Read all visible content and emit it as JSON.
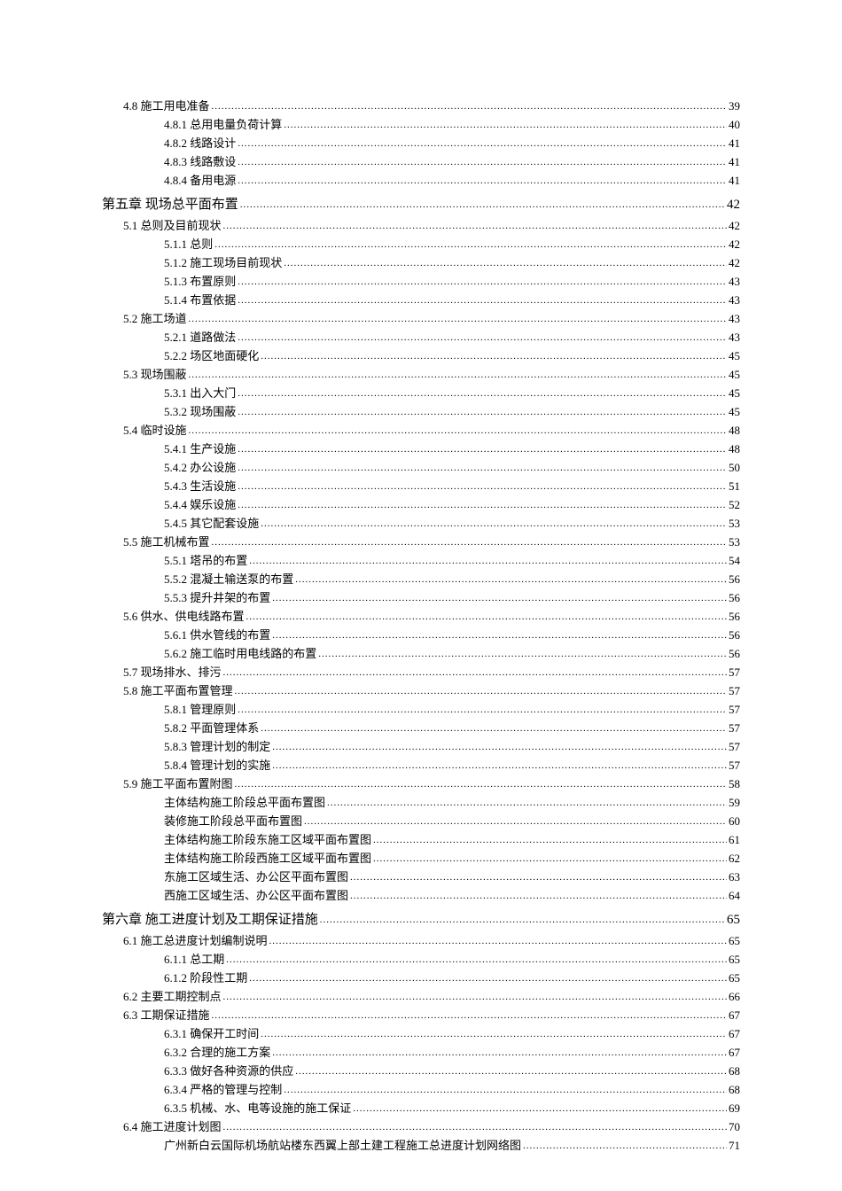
{
  "toc": [
    {
      "level": 1,
      "label": "4.8 施工用电准备",
      "page": "39"
    },
    {
      "level": 2,
      "label": "4.8.1 总用电量负荷计算",
      "page": "40"
    },
    {
      "level": 2,
      "label": "4.8.2 线路设计",
      "page": "41"
    },
    {
      "level": 2,
      "label": "4.8.3 线路敷设",
      "page": "41"
    },
    {
      "level": 2,
      "label": "4.8.4 备用电源",
      "page": "41"
    },
    {
      "level": 0,
      "label": "第五章   现场总平面布置",
      "page": "42"
    },
    {
      "level": 1,
      "label": "5.1 总则及目前现状",
      "page": "42"
    },
    {
      "level": 2,
      "label": "5.1.1 总则",
      "page": "42"
    },
    {
      "level": 2,
      "label": "5.1.2 施工现场目前现状",
      "page": "42"
    },
    {
      "level": 2,
      "label": "5.1.3 布置原则",
      "page": "43"
    },
    {
      "level": 2,
      "label": "5.1.4 布置依据",
      "page": "43"
    },
    {
      "level": 1,
      "label": "5.2 施工场道",
      "page": "43"
    },
    {
      "level": 2,
      "label": "5.2.1 道路做法",
      "page": "43"
    },
    {
      "level": 2,
      "label": "5.2.2 场区地面硬化",
      "page": "45"
    },
    {
      "level": 1,
      "label": "5.3 现场围蔽",
      "page": "45"
    },
    {
      "level": 2,
      "label": "5.3.1 出入大门",
      "page": "45"
    },
    {
      "level": 2,
      "label": "5.3.2 现场围蔽",
      "page": "45"
    },
    {
      "level": 1,
      "label": "5.4 临时设施",
      "page": "48"
    },
    {
      "level": 2,
      "label": "5.4.1 生产设施",
      "page": "48"
    },
    {
      "level": 2,
      "label": "5.4.2  办公设施",
      "page": "50"
    },
    {
      "level": 2,
      "label": "5.4.3  生活设施",
      "page": "51"
    },
    {
      "level": 2,
      "label": "5.4.4  娱乐设施",
      "page": "52"
    },
    {
      "level": 2,
      "label": "5.4.5 其它配套设施",
      "page": "53"
    },
    {
      "level": 1,
      "label": "5.5 施工机械布置",
      "page": "53"
    },
    {
      "level": 2,
      "label": "5.5.1 塔吊的布置",
      "page": "54"
    },
    {
      "level": 2,
      "label": "5.5.2 混凝土输送泵的布置",
      "page": "56"
    },
    {
      "level": 2,
      "label": "5.5.3 提升井架的布置",
      "page": "56"
    },
    {
      "level": 1,
      "label": "5.6 供水、供电线路布置",
      "page": "56"
    },
    {
      "level": 2,
      "label": "5.6.1 供水管线的布置",
      "page": "56"
    },
    {
      "level": 2,
      "label": "5.6.2 施工临时用电线路的布置",
      "page": "56"
    },
    {
      "level": 1,
      "label": "5.7 现场排水、排污",
      "page": "57"
    },
    {
      "level": 1,
      "label": "5.8 施工平面布置管理",
      "page": "57"
    },
    {
      "level": 2,
      "label": "5.8.1 管理原则",
      "page": "57"
    },
    {
      "level": 2,
      "label": "5.8.2 平面管理体系",
      "page": "57"
    },
    {
      "level": 2,
      "label": "5.8.3 管理计划的制定",
      "page": "57"
    },
    {
      "level": 2,
      "label": "5.8.4 管理计划的实施",
      "page": "57"
    },
    {
      "level": 1,
      "label": "5.9 施工平面布置附图",
      "page": "58"
    },
    {
      "level": 2,
      "label": "主体结构施工阶段总平面布置图",
      "page": "59"
    },
    {
      "level": 2,
      "label": "装修施工阶段总平面布置图",
      "page": "60"
    },
    {
      "level": 2,
      "label": "主体结构施工阶段东施工区域平面布置图",
      "page": "61"
    },
    {
      "level": 2,
      "label": "主体结构施工阶段西施工区域平面布置图",
      "page": "62"
    },
    {
      "level": 2,
      "label": "东施工区域生活、办公区平面布置图",
      "page": "63"
    },
    {
      "level": 2,
      "label": "西施工区域生活、办公区平面布置图",
      "page": "64"
    },
    {
      "level": 0,
      "label": "第六章   施工进度计划及工期保证措施",
      "page": "65"
    },
    {
      "level": 1,
      "label": "6.1 施工总进度计划编制说明",
      "page": "65"
    },
    {
      "level": 2,
      "label": "6.1.1 总工期",
      "page": "65"
    },
    {
      "level": 2,
      "label": "6.1.2 阶段性工期",
      "page": "65"
    },
    {
      "level": 1,
      "label": "6.2 主要工期控制点",
      "page": "66"
    },
    {
      "level": 1,
      "label": "6.3 工期保证措施",
      "page": "67"
    },
    {
      "level": 2,
      "label": "6.3.1 确保开工时间",
      "page": "67"
    },
    {
      "level": 2,
      "label": "6.3.2 合理的施工方案",
      "page": "67"
    },
    {
      "level": 2,
      "label": "6.3.3 做好各种资源的供应",
      "page": "68"
    },
    {
      "level": 2,
      "label": "6.3.4 严格的管理与控制",
      "page": "68"
    },
    {
      "level": 2,
      "label": "6.3.5 机械、水、电等设施的施工保证",
      "page": "69"
    },
    {
      "level": 1,
      "label": "6.4 施工进度计划图",
      "page": "70"
    },
    {
      "level": 2,
      "label": "广州新白云国际机场航站楼东西翼上部土建工程施工总进度计划网络图",
      "page": "71"
    }
  ]
}
